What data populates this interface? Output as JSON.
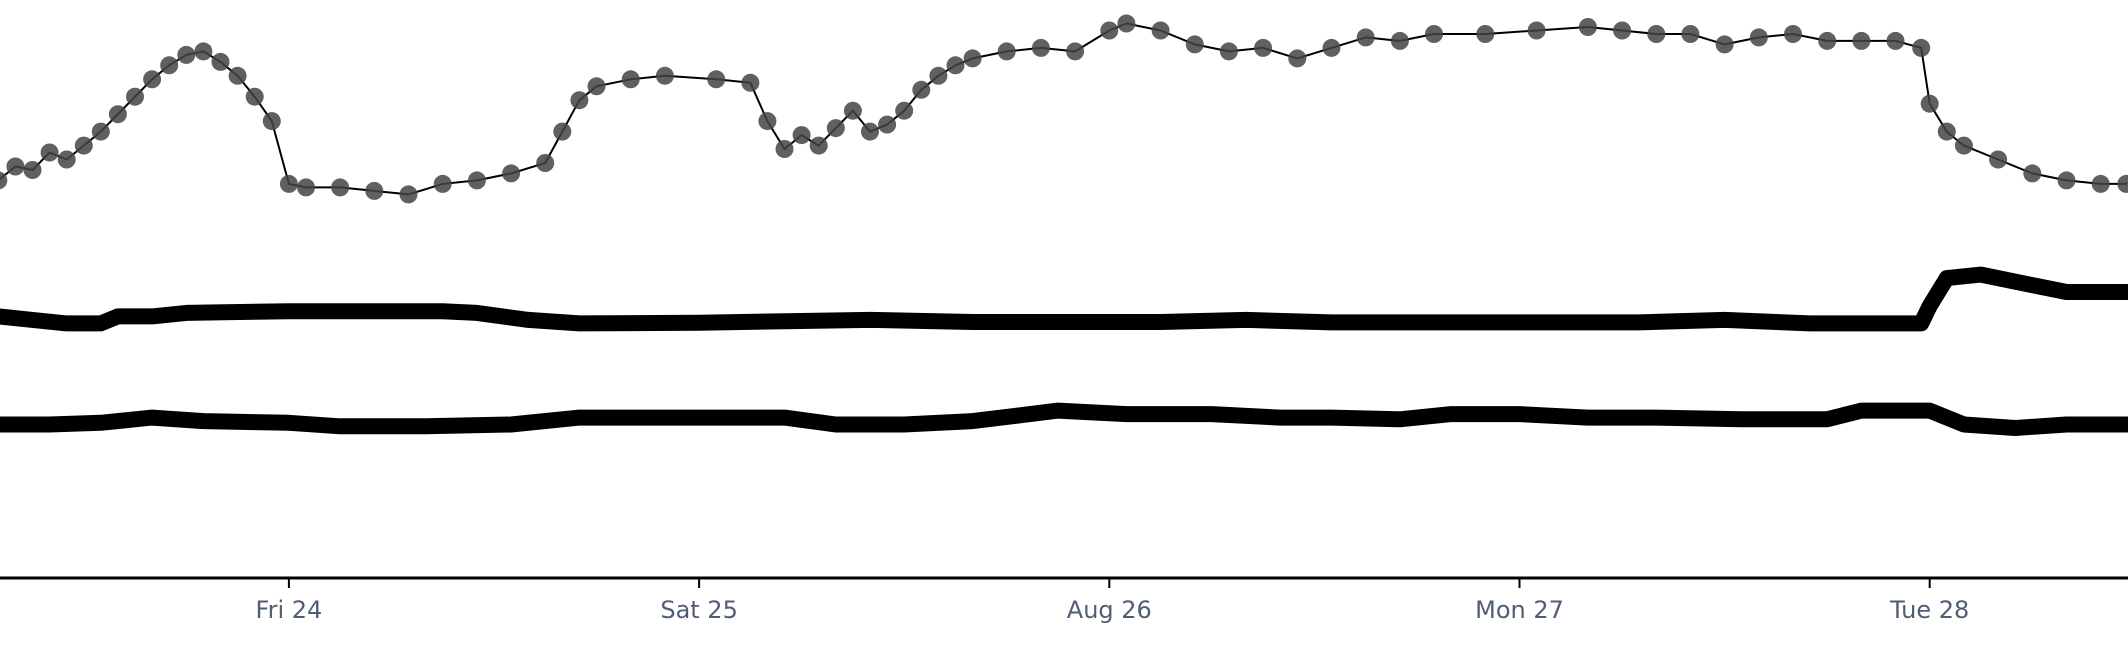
{
  "chart_data": {
    "type": "line",
    "x_axis": {
      "type": "time",
      "start": "2018-08-23T07:06",
      "end": "2018-08-28T11:36",
      "ticks": [
        {
          "label": "Fri 24",
          "value": "2018-08-24T00:00"
        },
        {
          "label": "Sat 25",
          "value": "2018-08-25T00:00"
        },
        {
          "label": "Aug 26",
          "value": "2018-08-26T00:00"
        },
        {
          "label": "Mon 27",
          "value": "2018-08-27T00:00"
        },
        {
          "label": "Tue 28",
          "value": "2018-08-28T00:00"
        }
      ]
    },
    "y_axis": {
      "visible": false,
      "range": [
        -20,
        140
      ]
    },
    "grid": false,
    "legend": "none",
    "series": [
      {
        "style": "lines+markers",
        "color": "#000000",
        "marker_color": "#444444",
        "x": [
          "2018-08-23T07:00",
          "2018-08-23T08:00",
          "2018-08-23T09:00",
          "2018-08-23T10:00",
          "2018-08-23T11:00",
          "2018-08-23T12:00",
          "2018-08-23T13:00",
          "2018-08-23T14:00",
          "2018-08-23T15:00",
          "2018-08-23T16:00",
          "2018-08-23T17:00",
          "2018-08-23T18:00",
          "2018-08-23T19:00",
          "2018-08-23T20:00",
          "2018-08-23T21:00",
          "2018-08-23T22:00",
          "2018-08-23T23:00",
          "2018-08-24T00:00",
          "2018-08-24T01:00",
          "2018-08-24T03:00",
          "2018-08-24T05:00",
          "2018-08-24T07:00",
          "2018-08-24T09:00",
          "2018-08-24T11:00",
          "2018-08-24T13:00",
          "2018-08-24T15:00",
          "2018-08-24T16:00",
          "2018-08-24T17:00",
          "2018-08-24T18:00",
          "2018-08-24T20:00",
          "2018-08-24T22:00",
          "2018-08-25T01:00",
          "2018-08-25T03:00",
          "2018-08-25T04:00",
          "2018-08-25T05:00",
          "2018-08-25T06:00",
          "2018-08-25T07:00",
          "2018-08-25T08:00",
          "2018-08-25T09:00",
          "2018-08-25T10:00",
          "2018-08-25T11:00",
          "2018-08-25T12:00",
          "2018-08-25T13:00",
          "2018-08-25T14:00",
          "2018-08-25T15:00",
          "2018-08-25T16:00",
          "2018-08-25T18:00",
          "2018-08-25T20:00",
          "2018-08-25T22:00",
          "2018-08-26T00:00",
          "2018-08-26T01:00",
          "2018-08-26T03:00",
          "2018-08-26T05:00",
          "2018-08-26T07:00",
          "2018-08-26T09:00",
          "2018-08-26T11:00",
          "2018-08-26T13:00",
          "2018-08-26T15:00",
          "2018-08-26T17:00",
          "2018-08-26T19:00",
          "2018-08-26T22:00",
          "2018-08-27T01:00",
          "2018-08-27T04:00",
          "2018-08-27T06:00",
          "2018-08-27T08:00",
          "2018-08-27T10:00",
          "2018-08-27T12:00",
          "2018-08-27T14:00",
          "2018-08-27T16:00",
          "2018-08-27T18:00",
          "2018-08-27T20:00",
          "2018-08-27T22:00",
          "2018-08-27T23:30",
          "2018-08-28T00:00",
          "2018-08-28T01:00",
          "2018-08-28T02:00",
          "2018-08-28T04:00",
          "2018-08-28T06:00",
          "2018-08-28T08:00",
          "2018-08-28T10:00",
          "2018-08-28T11:30"
        ],
        "y": [
          94,
          98,
          97,
          102,
          100,
          104,
          108,
          113,
          118,
          123,
          127,
          130,
          131,
          128,
          124,
          118,
          111,
          93,
          92,
          92,
          91,
          90,
          93,
          94,
          96,
          99,
          108,
          117,
          121,
          123,
          124,
          123,
          122,
          111,
          103,
          107,
          104,
          109,
          114,
          108,
          110,
          114,
          120,
          124,
          127,
          129,
          131,
          132,
          131,
          137,
          139,
          137,
          133,
          131,
          132,
          129,
          132,
          135,
          134,
          136,
          136,
          137,
          138,
          137,
          136,
          136,
          133,
          135,
          136,
          134,
          134,
          134,
          132,
          116,
          108,
          104,
          100,
          96,
          94,
          93,
          93
        ]
      },
      {
        "style": "lines",
        "color": "#000000",
        "x": [
          "2018-08-23T07:00",
          "2018-08-23T09:00",
          "2018-08-23T11:00",
          "2018-08-23T13:00",
          "2018-08-23T14:00",
          "2018-08-23T16:00",
          "2018-08-23T18:00",
          "2018-08-24T00:00",
          "2018-08-24T04:00",
          "2018-08-24T09:00",
          "2018-08-24T11:00",
          "2018-08-24T14:00",
          "2018-08-24T17:00",
          "2018-08-25T00:00",
          "2018-08-25T10:00",
          "2018-08-25T16:00",
          "2018-08-26T03:00",
          "2018-08-26T08:00",
          "2018-08-26T13:00",
          "2018-08-26T19:00",
          "2018-08-27T07:00",
          "2018-08-27T12:00",
          "2018-08-27T17:00",
          "2018-08-27T22:00",
          "2018-08-27T23:30",
          "2018-08-28T00:00",
          "2018-08-28T01:00",
          "2018-08-28T03:00",
          "2018-08-28T06:00",
          "2018-08-28T08:00",
          "2018-08-28T11:30"
        ],
        "y": [
          55,
          54,
          53,
          53,
          55,
          55,
          56,
          56.5,
          56.5,
          56.5,
          56,
          54,
          53,
          53.2,
          54,
          53.4,
          53.4,
          54,
          53.3,
          53.3,
          53.3,
          54,
          53,
          53,
          53,
          58,
          66,
          67,
          64,
          62,
          62
        ]
      },
      {
        "style": "lines",
        "color": "#000000",
        "x": [
          "2018-08-23T07:00",
          "2018-08-23T10:00",
          "2018-08-23T13:00",
          "2018-08-23T16:00",
          "2018-08-23T19:00",
          "2018-08-24T00:00",
          "2018-08-24T03:00",
          "2018-08-24T08:00",
          "2018-08-24T13:00",
          "2018-08-24T17:00",
          "2018-08-25T00:00",
          "2018-08-25T05:00",
          "2018-08-25T08:00",
          "2018-08-25T12:00",
          "2018-08-25T16:00",
          "2018-08-25T21:00",
          "2018-08-26T01:00",
          "2018-08-26T06:00",
          "2018-08-26T10:00",
          "2018-08-26T13:00",
          "2018-08-26T17:00",
          "2018-08-26T20:00",
          "2018-08-27T00:00",
          "2018-08-27T04:00",
          "2018-08-27T08:00",
          "2018-08-27T13:00",
          "2018-08-27T18:00",
          "2018-08-27T20:00",
          "2018-08-27T23:00",
          "2018-08-28T00:00",
          "2018-08-28T02:00",
          "2018-08-28T05:00",
          "2018-08-28T08:00",
          "2018-08-28T11:30"
        ],
        "y": [
          24,
          24,
          24.5,
          26,
          25,
          24.5,
          23.5,
          23.5,
          24,
          26,
          26,
          26,
          24,
          24,
          25,
          28,
          27,
          27,
          26,
          26,
          25.5,
          27,
          27,
          26,
          26,
          25.5,
          25.5,
          28,
          28,
          28,
          24,
          23,
          24,
          24
        ]
      }
    ]
  }
}
